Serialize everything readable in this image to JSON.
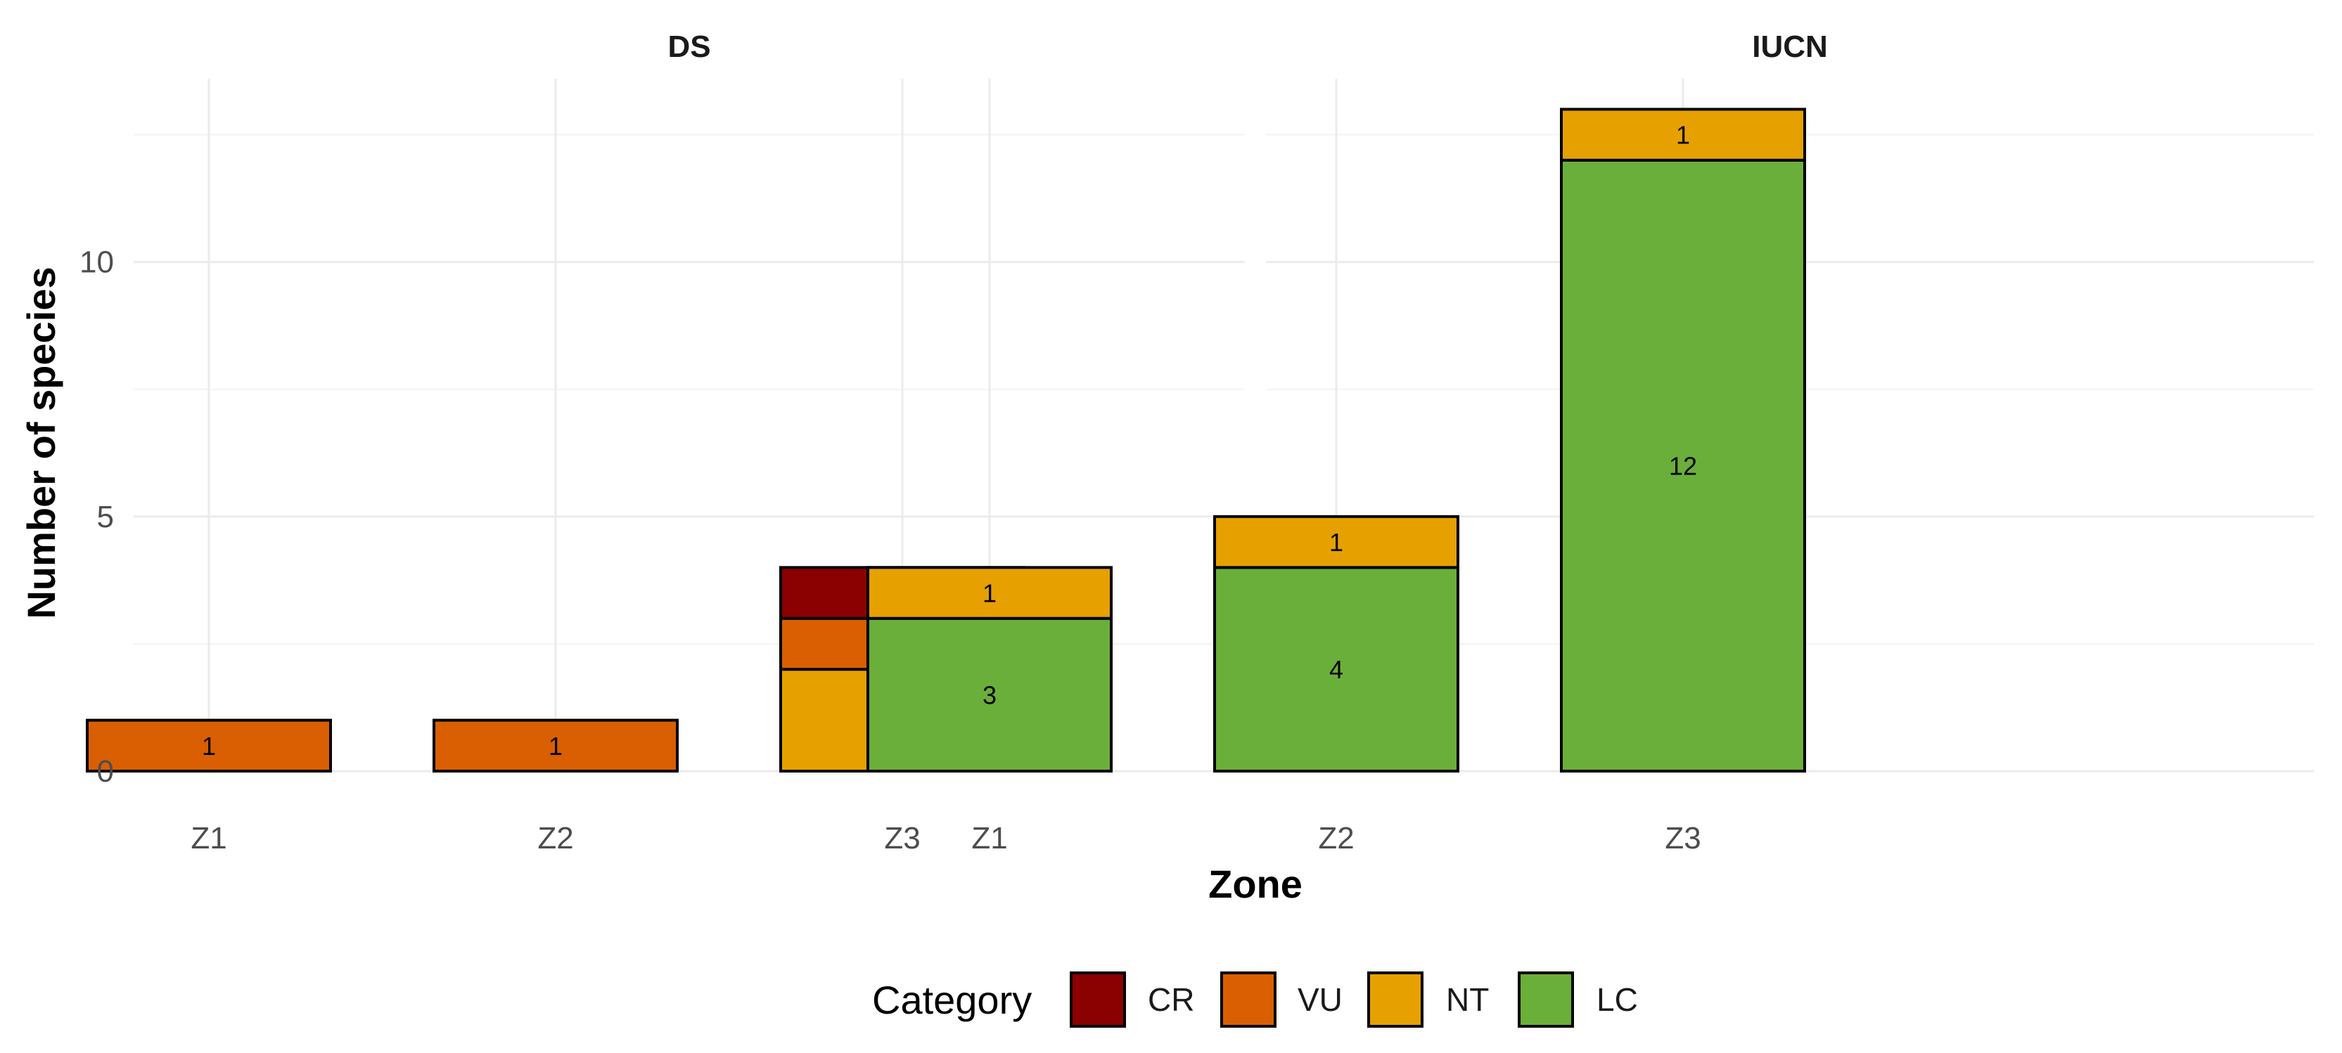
{
  "chart_data": {
    "type": "bar",
    "stacked": true,
    "facets": [
      {
        "title": "DS",
        "categories": [
          "Z1",
          "Z2",
          "Z3"
        ],
        "series": [
          {
            "name": "CR",
            "values": [
              0,
              0,
              1
            ]
          },
          {
            "name": "VU",
            "values": [
              1,
              1,
              1
            ]
          },
          {
            "name": "NT",
            "values": [
              0,
              0,
              2
            ]
          },
          {
            "name": "LC",
            "values": [
              0,
              0,
              0
            ]
          }
        ]
      },
      {
        "title": "IUCN",
        "categories": [
          "Z1",
          "Z2",
          "Z3"
        ],
        "series": [
          {
            "name": "CR",
            "values": [
              0,
              0,
              0
            ]
          },
          {
            "name": "VU",
            "values": [
              0,
              0,
              0
            ]
          },
          {
            "name": "NT",
            "values": [
              1,
              1,
              1
            ]
          },
          {
            "name": "LC",
            "values": [
              3,
              4,
              12
            ]
          }
        ]
      }
    ],
    "xlabel": "Zone",
    "ylabel": "Number of species",
    "ylim": [
      0,
      13.6
    ],
    "yticks": [
      0,
      5,
      10
    ],
    "grid": true,
    "legend": {
      "title": "Category",
      "position": "bottom",
      "entries": [
        "CR",
        "VU",
        "NT",
        "LC"
      ]
    },
    "colors": {
      "CR": "#8b0000",
      "VU": "#d95f02",
      "NT": "#e6a000",
      "LC": "#6aaf3a"
    }
  }
}
